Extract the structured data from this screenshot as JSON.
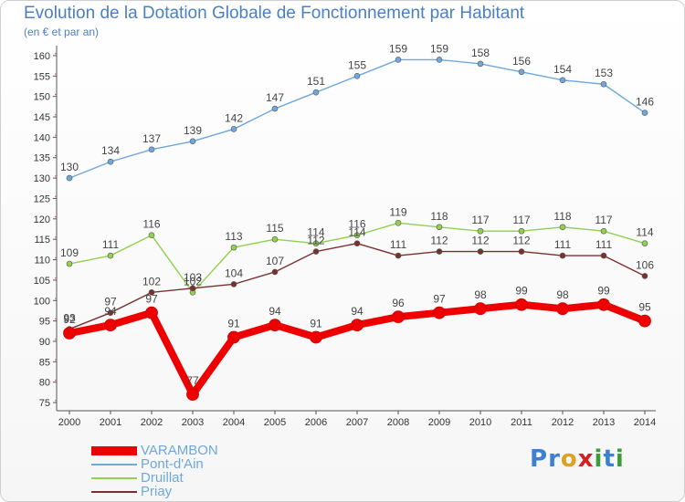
{
  "header": {
    "title": "Evolution de la Dotation Globale de Fonctionnement par Habitant",
    "subtitle": "(en € et par an)"
  },
  "logo": {
    "text": "Proxiti",
    "letters": [
      "P",
      "r",
      "o",
      "x",
      "i",
      "t",
      "i"
    ],
    "colors": [
      "#3d7fd0",
      "#3d7fd0",
      "#e0a020",
      "#d02020",
      "#3d9a3d",
      "#3d7fd0",
      "#3d9a3d"
    ]
  },
  "chart_data": {
    "type": "line",
    "title": "Evolution de la Dotation Globale de Fonctionnement par Habitant",
    "subtitle": "(en € et par an)",
    "xlabel": "",
    "ylabel": "",
    "ylim": [
      73,
      162
    ],
    "yticks": [
      75,
      80,
      85,
      90,
      95,
      100,
      105,
      110,
      115,
      120,
      125,
      130,
      135,
      140,
      145,
      150,
      155,
      160
    ],
    "grid": false,
    "legend_position": "bottom-left",
    "x": [
      "2000",
      "2001",
      "2002",
      "2003",
      "2004",
      "2005",
      "2006",
      "2007",
      "2008",
      "2009",
      "2010",
      "2011",
      "2012",
      "2013",
      "2014"
    ],
    "series": [
      {
        "name": "VARAMBON",
        "color": "#ee0000",
        "values": [
          92,
          94,
          97,
          77,
          91,
          94,
          91,
          94,
          96,
          97,
          98,
          99,
          98,
          99,
          95
        ]
      },
      {
        "name": "Pont-d'Ain",
        "color": "#6fa8dc",
        "values": [
          130,
          134,
          137,
          139,
          142,
          147,
          151,
          155,
          159,
          159,
          158,
          156,
          154,
          153,
          146
        ]
      },
      {
        "name": "Druillat",
        "color": "#92d050",
        "values": [
          109,
          111,
          116,
          102,
          113,
          115,
          114,
          116,
          119,
          118,
          117,
          117,
          118,
          117,
          114
        ]
      },
      {
        "name": "Priay",
        "color": "#7b3030",
        "values": [
          93,
          97,
          102,
          103,
          104,
          107,
          112,
          114,
          111,
          112,
          112,
          112,
          111,
          111,
          106
        ]
      }
    ]
  }
}
